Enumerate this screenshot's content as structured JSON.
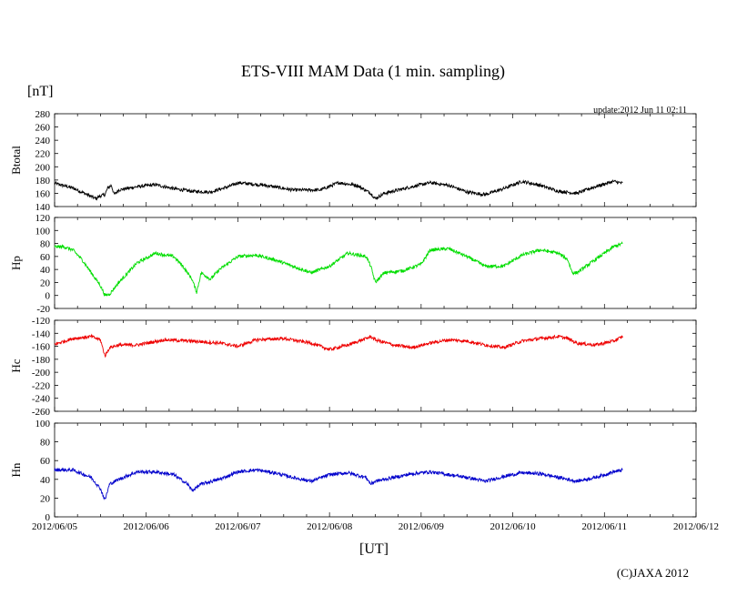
{
  "chart_data": {
    "type": "line",
    "title": "ETS-VIII MAM Data (1 min. sampling)",
    "unit_label": "[nT]",
    "update_text": "update:2012 Jun 11 02:11",
    "xlabel": "[UT]",
    "copyright": "(C)JAXA 2012",
    "x_ticks": [
      "2012/06/05",
      "2012/06/06",
      "2012/06/07",
      "2012/06/08",
      "2012/06/09",
      "2012/06/10",
      "2012/06/11",
      "2012/06/12"
    ],
    "x_range_days": [
      0,
      7
    ],
    "x_unit": "days since 2012/06/05 00:00 UT",
    "panels": [
      {
        "name": "Btotal",
        "ylabel": "Btotal",
        "color": "#000000",
        "ylim": [
          140,
          280
        ],
        "yticks": [
          "280",
          "260",
          "240",
          "220",
          "200",
          "180",
          "160",
          "140"
        ],
        "x": [
          0,
          0.2,
          0.45,
          0.5,
          0.55,
          0.58,
          0.62,
          0.65,
          0.7,
          0.9,
          1.1,
          1.3,
          1.5,
          1.7,
          1.9,
          2.0,
          2.3,
          2.6,
          2.9,
          3.1,
          3.3,
          3.45,
          3.5,
          3.6,
          3.9,
          4.1,
          4.3,
          4.5,
          4.7,
          4.9,
          5.1,
          5.3,
          5.5,
          5.7,
          5.9,
          6.1,
          6.2
        ],
        "y": [
          175,
          168,
          152,
          156,
          158,
          168,
          172,
          158,
          165,
          170,
          173,
          167,
          163,
          162,
          170,
          176,
          172,
          165,
          165,
          176,
          172,
          160,
          152,
          160,
          170,
          176,
          172,
          162,
          158,
          167,
          178,
          172,
          163,
          160,
          170,
          178,
          175
        ]
      },
      {
        "name": "Hp",
        "ylabel": "Hp",
        "color": "#00dd00",
        "ylim": [
          -20,
          120
        ],
        "yticks": [
          "120",
          "100",
          "80",
          "60",
          "40",
          "20",
          "0",
          "-20"
        ],
        "x": [
          0,
          0.1,
          0.2,
          0.3,
          0.4,
          0.5,
          0.55,
          0.6,
          0.7,
          0.9,
          1.1,
          1.3,
          1.4,
          1.5,
          1.55,
          1.6,
          1.7,
          1.8,
          2.0,
          2.2,
          2.4,
          2.6,
          2.8,
          3.0,
          3.2,
          3.4,
          3.45,
          3.5,
          3.6,
          3.8,
          4.0,
          4.1,
          4.3,
          4.5,
          4.7,
          4.9,
          5.1,
          5.3,
          5.5,
          5.6,
          5.65,
          5.7,
          5.9,
          6.1,
          6.2
        ],
        "y": [
          75,
          75,
          70,
          55,
          35,
          15,
          0,
          2,
          20,
          50,
          65,
          60,
          45,
          25,
          5,
          35,
          25,
          40,
          60,
          62,
          55,
          45,
          35,
          45,
          65,
          60,
          45,
          20,
          35,
          38,
          48,
          70,
          72,
          60,
          45,
          45,
          62,
          70,
          65,
          55,
          35,
          35,
          55,
          75,
          80
        ]
      },
      {
        "name": "Hc",
        "ylabel": "Hc",
        "color": "#ee0000",
        "ylim": [
          -260,
          -120
        ],
        "yticks": [
          "-120",
          "-140",
          "-160",
          "-180",
          "-200",
          "-220",
          "-240",
          "-260"
        ],
        "x": [
          0,
          0.2,
          0.4,
          0.5,
          0.55,
          0.6,
          0.7,
          0.9,
          1.2,
          1.5,
          1.8,
          2.0,
          2.2,
          2.5,
          2.8,
          3.0,
          3.2,
          3.4,
          3.45,
          3.5,
          3.7,
          3.9,
          4.1,
          4.3,
          4.5,
          4.7,
          4.9,
          5.1,
          5.3,
          5.5,
          5.6,
          5.7,
          5.9,
          6.1,
          6.2
        ],
        "y": [
          -157,
          -148,
          -145,
          -150,
          -175,
          -162,
          -158,
          -158,
          -150,
          -152,
          -155,
          -160,
          -150,
          -148,
          -155,
          -165,
          -158,
          -148,
          -145,
          -150,
          -158,
          -162,
          -155,
          -150,
          -152,
          -158,
          -162,
          -152,
          -148,
          -145,
          -148,
          -155,
          -158,
          -152,
          -145
        ]
      },
      {
        "name": "Hn",
        "ylabel": "Hn",
        "color": "#0000cc",
        "ylim": [
          0,
          100
        ],
        "yticks": [
          "100",
          "80",
          "60",
          "40",
          "20",
          "0"
        ],
        "x": [
          0,
          0.2,
          0.4,
          0.5,
          0.55,
          0.6,
          0.7,
          0.9,
          1.1,
          1.3,
          1.45,
          1.5,
          1.6,
          1.8,
          2.0,
          2.2,
          2.4,
          2.6,
          2.8,
          3.0,
          3.2,
          3.4,
          3.45,
          3.5,
          3.7,
          3.9,
          4.1,
          4.3,
          4.5,
          4.7,
          4.9,
          5.1,
          5.3,
          5.5,
          5.7,
          5.9,
          6.1,
          6.2
        ],
        "y": [
          50,
          50,
          42,
          30,
          18,
          35,
          40,
          48,
          48,
          45,
          35,
          28,
          35,
          40,
          48,
          50,
          47,
          42,
          38,
          45,
          47,
          42,
          35,
          38,
          42,
          46,
          48,
          45,
          42,
          38,
          43,
          47,
          46,
          42,
          38,
          42,
          48,
          50
        ]
      }
    ]
  }
}
